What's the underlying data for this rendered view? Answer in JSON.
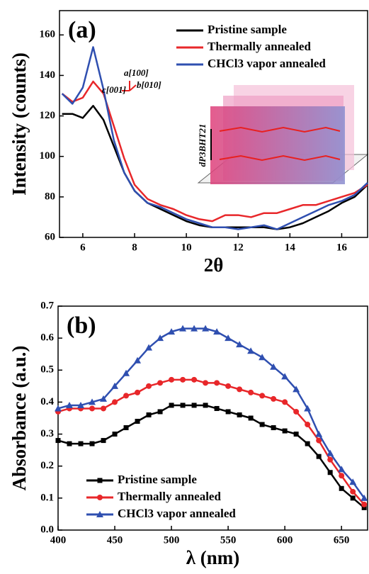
{
  "chart_data": [
    {
      "type": "line",
      "panel_label": "(a)",
      "x_label": "2θ",
      "y_label": "Intensity (counts)",
      "x": [
        5.2,
        5.6,
        6.0,
        6.4,
        6.8,
        7.2,
        7.6,
        8.0,
        8.5,
        9.0,
        9.5,
        10,
        10.5,
        11,
        11.5,
        12,
        12.5,
        13,
        13.5,
        14,
        14.5,
        15,
        15.5,
        16,
        16.5,
        17
      ],
      "series": [
        {
          "name": "Pristine sample",
          "color": "#000000",
          "values": [
            121,
            121,
            119,
            125,
            118,
            105,
            92,
            83,
            77,
            74,
            71,
            68,
            66,
            65,
            65,
            65,
            65,
            65,
            64,
            65,
            67,
            70,
            73,
            77,
            80,
            86
          ]
        },
        {
          "name": "Thermally annealed",
          "color": "#e8272a",
          "values": [
            131,
            127,
            129,
            137,
            131,
            115,
            99,
            86,
            79,
            76,
            74,
            71,
            69,
            68,
            71,
            71,
            70,
            72,
            72,
            74,
            76,
            76,
            78,
            80,
            82,
            86
          ]
        },
        {
          "name": "CHCl3 vapor annealed",
          "color": "#2f4fb0",
          "values": [
            131,
            126,
            134,
            154,
            133,
            108,
            92,
            83,
            77,
            75,
            72,
            69,
            67,
            65,
            65,
            64,
            65,
            66,
            64,
            67,
            70,
            73,
            76,
            78,
            81,
            87
          ]
        }
      ],
      "xlim": [
        5.1,
        17
      ],
      "ylim": [
        60,
        172
      ],
      "xticks": [
        6,
        8,
        10,
        12,
        14,
        16
      ],
      "yticks": [
        60,
        80,
        100,
        120,
        140,
        160
      ],
      "legend": "upper right",
      "annotations": [
        "a[100]",
        "b[010]",
        "c[001]",
        "dP3BHT21"
      ]
    },
    {
      "type": "line",
      "panel_label": "(b)",
      "x_label": "λ (nm)",
      "y_label": "Absorbance (a.u.)",
      "x": [
        400,
        410,
        420,
        430,
        440,
        450,
        460,
        470,
        480,
        490,
        500,
        510,
        520,
        530,
        540,
        550,
        560,
        570,
        580,
        590,
        600,
        610,
        620,
        630,
        640,
        650,
        660,
        670
      ],
      "series": [
        {
          "name": "Pristine sample",
          "color": "#000000",
          "marker": "square",
          "values": [
            0.28,
            0.27,
            0.27,
            0.27,
            0.28,
            0.3,
            0.32,
            0.34,
            0.36,
            0.37,
            0.39,
            0.39,
            0.39,
            0.39,
            0.38,
            0.37,
            0.36,
            0.35,
            0.33,
            0.32,
            0.31,
            0.3,
            0.27,
            0.23,
            0.18,
            0.13,
            0.1,
            0.07
          ]
        },
        {
          "name": "Thermally annealed",
          "color": "#e8272a",
          "marker": "circle",
          "values": [
            0.37,
            0.38,
            0.38,
            0.38,
            0.38,
            0.4,
            0.42,
            0.43,
            0.45,
            0.46,
            0.47,
            0.47,
            0.47,
            0.46,
            0.46,
            0.45,
            0.44,
            0.43,
            0.42,
            0.41,
            0.4,
            0.37,
            0.33,
            0.28,
            0.22,
            0.17,
            0.12,
            0.08
          ]
        },
        {
          "name": "CHCl3 vapor annealed",
          "color": "#2f4fb0",
          "marker": "triangle",
          "values": [
            0.38,
            0.39,
            0.39,
            0.4,
            0.41,
            0.45,
            0.49,
            0.53,
            0.57,
            0.6,
            0.62,
            0.63,
            0.63,
            0.63,
            0.62,
            0.6,
            0.58,
            0.56,
            0.54,
            0.51,
            0.48,
            0.44,
            0.38,
            0.3,
            0.24,
            0.19,
            0.15,
            0.1
          ]
        }
      ],
      "xlim": [
        400,
        673
      ],
      "ylim": [
        0,
        0.7
      ],
      "xticks": [
        400,
        450,
        500,
        550,
        600,
        650
      ],
      "yticks": [
        {
          "value": 0,
          "label": "0.0"
        },
        0.1,
        0.2,
        0.3,
        0.4,
        0.5,
        0.6,
        0.7
      ],
      "legend": "lower left"
    }
  ]
}
